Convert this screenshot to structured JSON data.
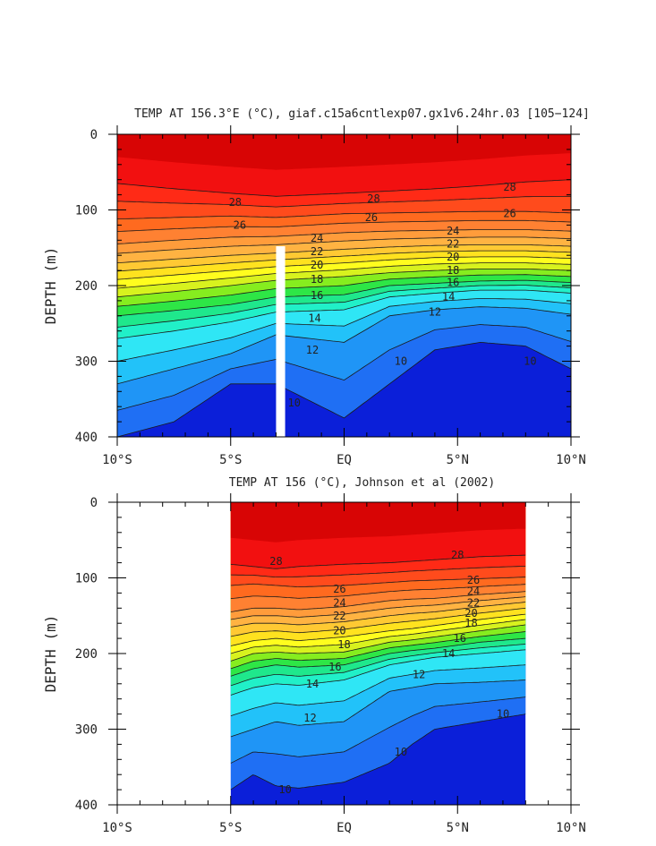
{
  "colors": {
    "scale": [
      "#0b1fd9",
      "#1f4ef2",
      "#1f6ff4",
      "#1f95f6",
      "#22c2f9",
      "#2fe6f5",
      "#21f0c8",
      "#1fe88c",
      "#2ee646",
      "#86ed1f",
      "#d8f21e",
      "#fffd1e",
      "#ffe21f",
      "#ffc933",
      "#ffb342",
      "#ff9c3b",
      "#ff8132",
      "#ff6a1f",
      "#ff4b1c",
      "#ff2a16",
      "#f21010",
      "#d80505"
    ]
  },
  "chart_data": [
    {
      "type": "heatmap",
      "title": "TEMP AT 156.3°E (°C), giaf.c15a6cntlexp07.gx1v6.24hr.03 [105−124]",
      "xlabel": "",
      "ylabel": "DEPTH (m)",
      "xlim": [
        -10,
        10
      ],
      "ylim": [
        400,
        0
      ],
      "x_ticks": [
        -10,
        -5,
        0,
        5,
        10
      ],
      "x_tick_labels": [
        "10°S",
        "5°S",
        "EQ",
        "5°N",
        "10°N"
      ],
      "y_ticks": [
        0,
        100,
        200,
        300,
        400
      ],
      "y_tick_labels": [
        "0",
        "100",
        "200",
        "300",
        "400"
      ],
      "contour_levels": [
        10,
        12,
        14,
        16,
        18,
        20,
        22,
        24,
        26,
        28
      ],
      "isotherm_depths": [
        {
          "level": 10,
          "x": [
            -10,
            -7.5,
            -5,
            -3,
            0,
            2,
            4,
            6,
            8,
            10
          ],
          "depth": [
            400,
            380,
            330,
            330,
            375,
            330,
            285,
            275,
            280,
            310
          ]
        },
        {
          "level": 12,
          "x": [
            -10,
            -7.5,
            -5,
            -3,
            0,
            2,
            4,
            6,
            8,
            10
          ],
          "depth": [
            330,
            310,
            290,
            265,
            275,
            240,
            232,
            228,
            230,
            238
          ]
        },
        {
          "level": 14,
          "x": [
            -10,
            -7.5,
            -5,
            -3,
            0,
            2,
            4,
            6,
            8,
            10
          ],
          "depth": [
            270,
            260,
            248,
            235,
            232,
            215,
            210,
            206,
            206,
            210
          ]
        },
        {
          "level": 16,
          "x": [
            -10,
            -7.5,
            -5,
            -3,
            0,
            2,
            4,
            6,
            8,
            10
          ],
          "depth": [
            240,
            233,
            225,
            215,
            212,
            200,
            197,
            194,
            193,
            196
          ]
        },
        {
          "level": 18,
          "x": [
            -10,
            -7.5,
            -5,
            -3,
            0,
            2,
            4,
            6,
            8,
            10
          ],
          "depth": [
            215,
            208,
            200,
            193,
            188,
            183,
            180,
            178,
            178,
            180
          ]
        },
        {
          "level": 20,
          "x": [
            -10,
            -7.5,
            -5,
            -3,
            0,
            2,
            4,
            6,
            8,
            10
          ],
          "depth": [
            192,
            186,
            180,
            175,
            170,
            166,
            163,
            162,
            162,
            164
          ]
        },
        {
          "level": 22,
          "x": [
            -10,
            -7.5,
            -5,
            -3,
            0,
            2,
            4,
            6,
            8,
            10
          ],
          "depth": [
            170,
            165,
            160,
            157,
            152,
            149,
            147,
            146,
            146,
            148
          ]
        },
        {
          "level": 24,
          "x": [
            -10,
            -7.5,
            -5,
            -3,
            0,
            2,
            4,
            6,
            8,
            10
          ],
          "depth": [
            145,
            140,
            136,
            135,
            130,
            128,
            127,
            126,
            126,
            128
          ]
        },
        {
          "level": 26,
          "x": [
            -10,
            -7.5,
            -5,
            -3,
            0,
            2,
            4,
            6,
            8,
            10
          ],
          "depth": [
            112,
            110,
            108,
            110,
            105,
            104,
            103,
            102,
            102,
            104
          ]
        },
        {
          "level": 28,
          "x": [
            -10,
            -7.5,
            -5,
            -3,
            0,
            2,
            4,
            6,
            8,
            10
          ],
          "depth": [
            65,
            72,
            78,
            82,
            78,
            75,
            72,
            68,
            63,
            60
          ]
        }
      ],
      "contour_labels": [
        {
          "text": "28",
          "x": -4.8,
          "depth": 90
        },
        {
          "text": "28",
          "x": 1.3,
          "depth": 85
        },
        {
          "text": "28",
          "x": 7.3,
          "depth": 70
        },
        {
          "text": "26",
          "x": -4.6,
          "depth": 120
        },
        {
          "text": "26",
          "x": 1.2,
          "depth": 110
        },
        {
          "text": "26",
          "x": 7.3,
          "depth": 105
        },
        {
          "text": "24",
          "x": -1.2,
          "depth": 137
        },
        {
          "text": "24",
          "x": 4.8,
          "depth": 128
        },
        {
          "text": "22",
          "x": -1.2,
          "depth": 155
        },
        {
          "text": "22",
          "x": 4.8,
          "depth": 145
        },
        {
          "text": "20",
          "x": -1.2,
          "depth": 173
        },
        {
          "text": "20",
          "x": 4.8,
          "depth": 162
        },
        {
          "text": "18",
          "x": -1.2,
          "depth": 192
        },
        {
          "text": "18",
          "x": 4.8,
          "depth": 180
        },
        {
          "text": "16",
          "x": -1.2,
          "depth": 213
        },
        {
          "text": "16",
          "x": 4.8,
          "depth": 196
        },
        {
          "text": "14",
          "x": -1.3,
          "depth": 243
        },
        {
          "text": "14",
          "x": 4.6,
          "depth": 215
        },
        {
          "text": "12",
          "x": -1.4,
          "depth": 285
        },
        {
          "text": "12",
          "x": 4.0,
          "depth": 235
        },
        {
          "text": "10",
          "x": -2.2,
          "depth": 355
        },
        {
          "text": "10",
          "x": 2.5,
          "depth": 300
        },
        {
          "text": "10",
          "x": 8.2,
          "depth": 300
        }
      ],
      "missing_strip_x": [
        -3.0,
        -2.6
      ],
      "missing_strip_depth": [
        148,
        400
      ]
    },
    {
      "type": "heatmap",
      "title": "TEMP AT 156 (°C), Johnson et al (2002)",
      "xlabel": "",
      "ylabel": "DEPTH (m)",
      "xlim": [
        -10,
        10
      ],
      "ylim": [
        400,
        0
      ],
      "data_x_range": [
        -5,
        8
      ],
      "x_ticks": [
        -10,
        -5,
        0,
        5,
        10
      ],
      "x_tick_labels": [
        "10°S",
        "5°S",
        "EQ",
        "5°N",
        "10°N"
      ],
      "y_ticks": [
        0,
        100,
        200,
        300,
        400
      ],
      "y_tick_labels": [
        "0",
        "100",
        "200",
        "300",
        "400"
      ],
      "contour_levels": [
        10,
        12,
        14,
        16,
        18,
        20,
        22,
        24,
        26,
        28
      ],
      "isotherm_depths": [
        {
          "level": 10,
          "x": [
            -5,
            -4,
            -3,
            -2,
            0,
            2,
            3,
            4,
            6,
            8
          ],
          "depth": [
            380,
            360,
            375,
            378,
            370,
            345,
            320,
            300,
            290,
            280
          ]
        },
        {
          "level": 12,
          "x": [
            -5,
            -4,
            -3,
            -2,
            0,
            2,
            3,
            4,
            6,
            8
          ],
          "depth": [
            310,
            300,
            290,
            295,
            290,
            250,
            245,
            240,
            238,
            235
          ]
        },
        {
          "level": 14,
          "x": [
            -5,
            -4,
            -3,
            -2,
            0,
            2,
            3,
            4,
            6,
            8
          ],
          "depth": [
            255,
            245,
            240,
            242,
            235,
            215,
            210,
            205,
            200,
            195
          ]
        },
        {
          "level": 16,
          "x": [
            -5,
            -4,
            -3,
            -2,
            0,
            2,
            3,
            4,
            6,
            8
          ],
          "depth": [
            230,
            220,
            215,
            218,
            215,
            200,
            196,
            193,
            185,
            180
          ]
        },
        {
          "level": 18,
          "x": [
            -5,
            -4,
            -3,
            -2,
            0,
            2,
            3,
            4,
            6,
            8
          ],
          "depth": [
            210,
            200,
            198,
            200,
            198,
            185,
            182,
            178,
            170,
            162
          ]
        },
        {
          "level": 20,
          "x": [
            -5,
            -4,
            -3,
            -2,
            0,
            2,
            3,
            4,
            6,
            8
          ],
          "depth": [
            190,
            183,
            180,
            183,
            178,
            170,
            167,
            163,
            155,
            148
          ]
        },
        {
          "level": 22,
          "x": [
            -5,
            -4,
            -3,
            -2,
            0,
            2,
            3,
            4,
            6,
            8
          ],
          "depth": [
            165,
            160,
            160,
            162,
            158,
            150,
            147,
            145,
            138,
            132
          ]
        },
        {
          "level": 24,
          "x": [
            -5,
            -4,
            -3,
            -2,
            0,
            2,
            3,
            4,
            6,
            8
          ],
          "depth": [
            145,
            140,
            140,
            142,
            138,
            130,
            128,
            127,
            122,
            118
          ]
        },
        {
          "level": 26,
          "x": [
            -5,
            -4,
            -3,
            -2,
            0,
            2,
            3,
            4,
            6,
            8
          ],
          "depth": [
            110,
            108,
            110,
            112,
            110,
            106,
            104,
            103,
            101,
            99
          ]
        },
        {
          "level": 28,
          "x": [
            -5,
            -4,
            -3,
            -2,
            0,
            2,
            3,
            4,
            6,
            8
          ],
          "depth": [
            82,
            85,
            88,
            85,
            82,
            80,
            78,
            76,
            72,
            70
          ]
        }
      ],
      "contour_labels": [
        {
          "text": "28",
          "x": -3.0,
          "depth": 78
        },
        {
          "text": "28",
          "x": 5.0,
          "depth": 70
        },
        {
          "text": "26",
          "x": -0.2,
          "depth": 115
        },
        {
          "text": "26",
          "x": 5.7,
          "depth": 103
        },
        {
          "text": "24",
          "x": -0.2,
          "depth": 133
        },
        {
          "text": "24",
          "x": 5.7,
          "depth": 118
        },
        {
          "text": "22",
          "x": -0.2,
          "depth": 150
        },
        {
          "text": "22",
          "x": 5.7,
          "depth": 133
        },
        {
          "text": "20",
          "x": -0.2,
          "depth": 170
        },
        {
          "text": "20",
          "x": 5.6,
          "depth": 147
        },
        {
          "text": "18",
          "x": 0.0,
          "depth": 188
        },
        {
          "text": "18",
          "x": 5.6,
          "depth": 160
        },
        {
          "text": "16",
          "x": -0.4,
          "depth": 218
        },
        {
          "text": "16",
          "x": 5.1,
          "depth": 180
        },
        {
          "text": "14",
          "x": -1.4,
          "depth": 240
        },
        {
          "text": "14",
          "x": 4.6,
          "depth": 200
        },
        {
          "text": "12",
          "x": -1.5,
          "depth": 285
        },
        {
          "text": "12",
          "x": 3.3,
          "depth": 228
        },
        {
          "text": "10",
          "x": -2.6,
          "depth": 380
        },
        {
          "text": "10",
          "x": 2.5,
          "depth": 330
        },
        {
          "text": "10",
          "x": 7.0,
          "depth": 280
        }
      ]
    }
  ]
}
